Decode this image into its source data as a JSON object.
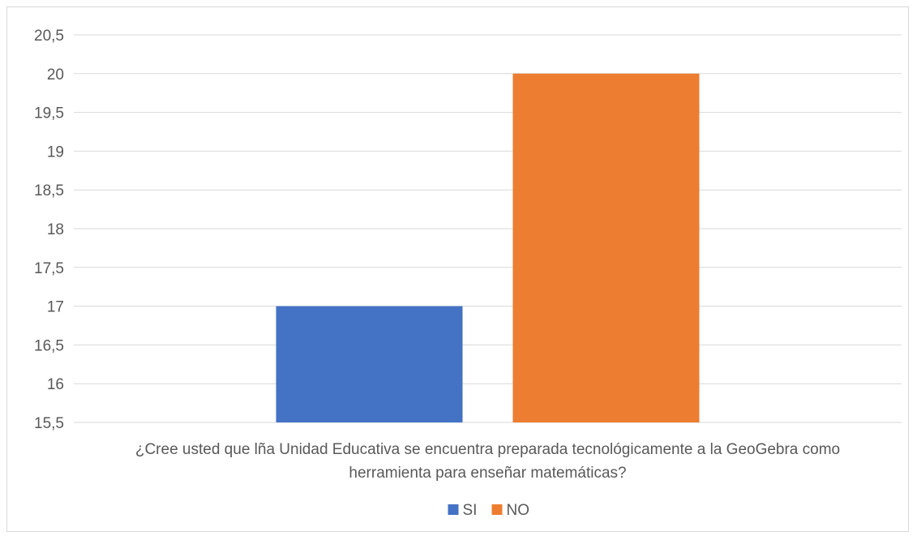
{
  "chart_data": {
    "type": "bar",
    "categories": [
      "¿Cree usted que lña Unidad Educativa se encuentra preparada tecnológicamente a la GeoGebra como herramienta para enseñar matemáticas?"
    ],
    "category_label_lines": [
      "¿Cree usted que lña Unidad Educativa se encuentra preparada tecnológicamente a la GeoGebra como",
      "herramienta para enseñar matemáticas?"
    ],
    "series": [
      {
        "name": "SI",
        "values": [
          17
        ],
        "color": "#4472c4"
      },
      {
        "name": "NO",
        "values": [
          20
        ],
        "color": "#ed7d31"
      }
    ],
    "y_ticks": [
      "15,5",
      "16",
      "16,5",
      "17",
      "17,5",
      "18",
      "18,5",
      "19",
      "19,5",
      "20",
      "20,5"
    ],
    "ylim": [
      15.5,
      20.5
    ],
    "ytick_step": 0.5,
    "grid": true,
    "legend_position": "bottom",
    "title": "",
    "xlabel": "",
    "ylabel": ""
  }
}
